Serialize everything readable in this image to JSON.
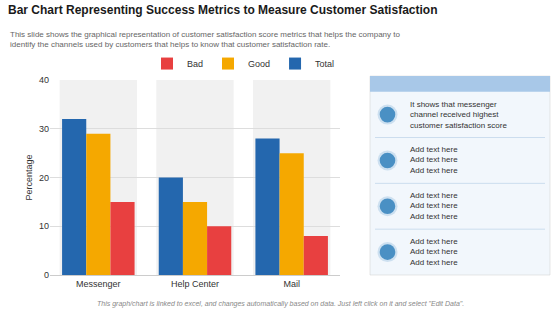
{
  "chart_data": {
    "type": "bar",
    "title": "Bar Chart Representing Success Metrics to Measure Customer Satisfaction",
    "subtitle": "This slide shows the graphical representation of customer satisfaction score metrics that helps the company to identify the channels used by customers that helps to know that customer satisfaction rate.",
    "footer": "This graph/chart is linked to excel, and changes automatically based on data. Just left click on it and select \"Edit Data\".",
    "ylabel": "Percentage",
    "categories": [
      "Messenger",
      "Help Center",
      "Mail"
    ],
    "series": [
      {
        "name": "Total",
        "color": "#2467ae",
        "values": [
          32,
          20,
          28
        ]
      },
      {
        "name": "Good",
        "color": "#f5a800",
        "values": [
          29,
          15,
          25
        ]
      },
      {
        "name": "Bad",
        "color": "#e84040",
        "values": [
          15,
          10,
          8
        ]
      }
    ],
    "ylim": [
      0,
      40
    ],
    "yticks": [
      0,
      10,
      20,
      30,
      40
    ],
    "grid": true,
    "legend": "upper right",
    "annotations": [
      "It shows that messenger\nchannel received highest\ncustomer satisfaction score",
      "Add text here\nAdd text here\nAdd text here",
      "Add text here\nAdd text here\nAdd text here",
      "Add text here\nAdd text here\nAdd text here"
    ]
  }
}
